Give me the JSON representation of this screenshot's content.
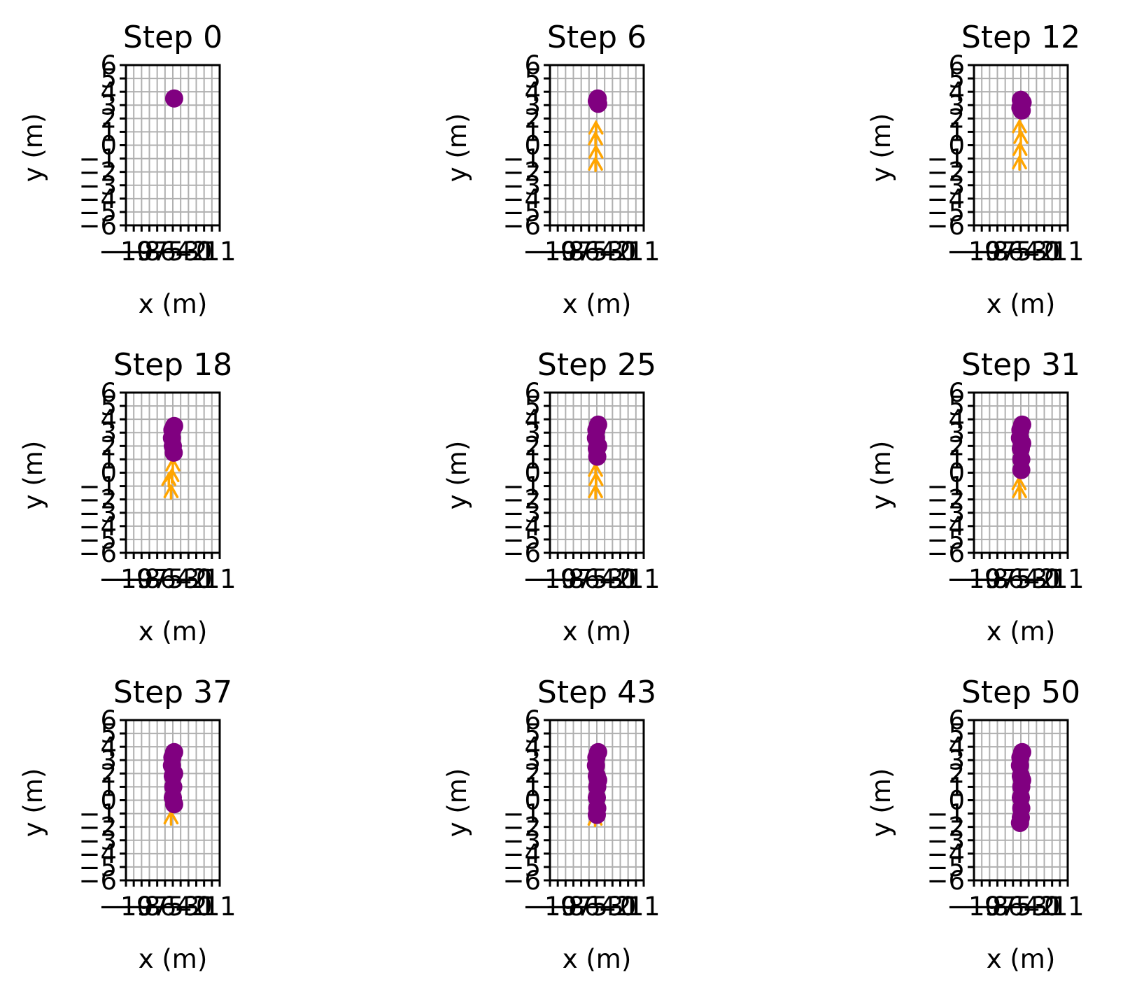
{
  "chart_data": [
    {
      "type": "scatter",
      "title": "Step 0",
      "xlabel": "x (m)",
      "ylabel": "y (m)",
      "xlim": [
        -10,
        11
      ],
      "ylim": [
        -6,
        6
      ],
      "grid": true,
      "xticks": [
        "−10",
        "−9",
        "−8",
        "−7",
        "−6",
        "−5",
        "−4",
        "−3",
        "−2",
        "−1",
        "0",
        "1",
        "11"
      ],
      "yticks": [
        "−6",
        "−5",
        "−4",
        "−3",
        "−2",
        "−1",
        "0",
        "1",
        "2",
        "3",
        "4",
        "5",
        "6"
      ],
      "agent_color": "#800080",
      "arrow_color": "#ffa500",
      "agent_path": [
        {
          "x": 0.8,
          "y": 3.5
        }
      ],
      "arrows": []
    },
    {
      "type": "scatter",
      "title": "Step 6",
      "xlabel": "x (m)",
      "ylabel": "y (m)",
      "xlim": [
        -10,
        11
      ],
      "ylim": [
        -6,
        6
      ],
      "grid": true,
      "xticks": [
        "−10",
        "−9",
        "−8",
        "−7",
        "−6",
        "−5",
        "−4",
        "−3",
        "−2",
        "−1",
        "0",
        "1",
        "11"
      ],
      "yticks": [
        "−6",
        "−5",
        "−4",
        "−3",
        "−2",
        "−1",
        "0",
        "1",
        "2",
        "3",
        "4",
        "5",
        "6"
      ],
      "agent_color": "#800080",
      "arrow_color": "#ffa500",
      "agent_path": [
        {
          "x": 0.5,
          "y": 3.3
        },
        {
          "x": 0.7,
          "y": 3.5
        },
        {
          "x": 0.8,
          "y": 3.1
        }
      ],
      "arrows": [
        {
          "x": 0.3,
          "y": 1.3
        },
        {
          "x": 0.2,
          "y": 0.5
        },
        {
          "x": 0.3,
          "y": -0.5
        },
        {
          "x": 0.2,
          "y": -1.4
        }
      ]
    },
    {
      "type": "scatter",
      "title": "Step 12",
      "xlabel": "x (m)",
      "ylabel": "y (m)",
      "xlim": [
        -10,
        11
      ],
      "ylim": [
        -6,
        6
      ],
      "grid": true,
      "xticks": [
        "−10",
        "−9",
        "−8",
        "−7",
        "−6",
        "−5",
        "−4",
        "−3",
        "−2",
        "−1",
        "0",
        "1",
        "11"
      ],
      "yticks": [
        "−6",
        "−5",
        "−4",
        "−3",
        "−2",
        "−1",
        "0",
        "1",
        "2",
        "3",
        "4",
        "5",
        "6"
      ],
      "agent_color": "#800080",
      "arrow_color": "#ffa500",
      "agent_path": [
        {
          "x": 0.5,
          "y": 3.4
        },
        {
          "x": 0.4,
          "y": 2.8
        },
        {
          "x": 0.7,
          "y": 2.6
        },
        {
          "x": 0.9,
          "y": 3.2
        }
      ],
      "arrows": [
        {
          "x": 0.2,
          "y": 1.4
        },
        {
          "x": 0.5,
          "y": 0.6
        },
        {
          "x": 0.3,
          "y": -0.3
        },
        {
          "x": 0.2,
          "y": -1.3
        }
      ]
    },
    {
      "type": "scatter",
      "title": "Step 18",
      "xlabel": "x (m)",
      "ylabel": "y (m)",
      "xlim": [
        -10,
        11
      ],
      "ylim": [
        -6,
        6
      ],
      "grid": true,
      "xticks": [
        "−10",
        "−9",
        "−8",
        "−7",
        "−6",
        "−5",
        "−4",
        "−3",
        "−2",
        "−1",
        "0",
        "1",
        "11"
      ],
      "yticks": [
        "−6",
        "−5",
        "−4",
        "−3",
        "−2",
        "−1",
        "0",
        "1",
        "2",
        "3",
        "4",
        "5",
        "6"
      ],
      "agent_color": "#800080",
      "arrow_color": "#ffa500",
      "agent_path": [
        {
          "x": 0.4,
          "y": 3.2
        },
        {
          "x": 0.3,
          "y": 2.6
        },
        {
          "x": 0.5,
          "y": 2.0
        },
        {
          "x": 0.7,
          "y": 1.5
        },
        {
          "x": 0.8,
          "y": 3.5
        }
      ],
      "arrows": [
        {
          "x": 0.5,
          "y": 0.6
        },
        {
          "x": -0.4,
          "y": -0.5
        },
        {
          "x": 0.3,
          "y": -0.2
        },
        {
          "x": 0.1,
          "y": -1.4
        }
      ]
    },
    {
      "type": "scatter",
      "title": "Step 25",
      "xlabel": "x (m)",
      "ylabel": "y (m)",
      "xlim": [
        -10,
        11
      ],
      "ylim": [
        -6,
        6
      ],
      "grid": true,
      "xticks": [
        "−10",
        "−9",
        "−8",
        "−7",
        "−6",
        "−5",
        "−4",
        "−3",
        "−2",
        "−1",
        "0",
        "1",
        "11"
      ],
      "yticks": [
        "−6",
        "−5",
        "−4",
        "−3",
        "−2",
        "−1",
        "0",
        "1",
        "2",
        "3",
        "4",
        "5",
        "6"
      ],
      "agent_color": "#800080",
      "arrow_color": "#ffa500",
      "agent_path": [
        {
          "x": 0.4,
          "y": 3.2
        },
        {
          "x": 0.3,
          "y": 2.6
        },
        {
          "x": 0.5,
          "y": 1.8
        },
        {
          "x": 0.6,
          "y": 1.2
        },
        {
          "x": 0.8,
          "y": 3.6
        },
        {
          "x": 0.8,
          "y": 2.0
        }
      ],
      "arrows": [
        {
          "x": 0.2,
          "y": 0.2
        },
        {
          "x": 0.3,
          "y": -0.5
        },
        {
          "x": 0.2,
          "y": -1.4
        }
      ]
    },
    {
      "type": "scatter",
      "title": "Step 31",
      "xlabel": "x (m)",
      "ylabel": "y (m)",
      "xlim": [
        -10,
        11
      ],
      "ylim": [
        -6,
        6
      ],
      "grid": true,
      "xticks": [
        "−10",
        "−9",
        "−8",
        "−7",
        "−6",
        "−5",
        "−4",
        "−3",
        "−2",
        "−1",
        "0",
        "1",
        "11"
      ],
      "yticks": [
        "−6",
        "−5",
        "−4",
        "−3",
        "−2",
        "−1",
        "0",
        "1",
        "2",
        "3",
        "4",
        "5",
        "6"
      ],
      "agent_color": "#800080",
      "arrow_color": "#ffa500",
      "agent_path": [
        {
          "x": 0.4,
          "y": 3.2
        },
        {
          "x": 0.3,
          "y": 2.6
        },
        {
          "x": 0.5,
          "y": 1.8
        },
        {
          "x": 0.6,
          "y": 1.0
        },
        {
          "x": 0.6,
          "y": 0.2
        },
        {
          "x": 0.8,
          "y": 3.6
        },
        {
          "x": 0.8,
          "y": 2.2
        }
      ],
      "arrows": [
        {
          "x": 0.1,
          "y": -0.8
        },
        {
          "x": 0.2,
          "y": -1.4
        }
      ]
    },
    {
      "type": "scatter",
      "title": "Step 37",
      "xlabel": "x (m)",
      "ylabel": "y (m)",
      "xlim": [
        -10,
        11
      ],
      "ylim": [
        -6,
        6
      ],
      "grid": true,
      "xticks": [
        "−10",
        "−9",
        "−8",
        "−7",
        "−6",
        "−5",
        "−4",
        "−3",
        "−2",
        "−1",
        "0",
        "1",
        "11"
      ],
      "yticks": [
        "−6",
        "−5",
        "−4",
        "−3",
        "−2",
        "−1",
        "0",
        "1",
        "2",
        "3",
        "4",
        "5",
        "6"
      ],
      "agent_color": "#800080",
      "arrow_color": "#ffa500",
      "agent_path": [
        {
          "x": 0.4,
          "y": 3.2
        },
        {
          "x": 0.3,
          "y": 2.6
        },
        {
          "x": 0.5,
          "y": 1.8
        },
        {
          "x": 0.6,
          "y": 1.0
        },
        {
          "x": 0.5,
          "y": 0.2
        },
        {
          "x": 0.8,
          "y": -0.3
        },
        {
          "x": 0.8,
          "y": 3.6
        },
        {
          "x": 0.8,
          "y": 2.0
        }
      ],
      "arrows": [
        {
          "x": 0.1,
          "y": -1.3
        }
      ]
    },
    {
      "type": "scatter",
      "title": "Step 43",
      "xlabel": "x (m)",
      "ylabel": "y (m)",
      "xlim": [
        -10,
        11
      ],
      "ylim": [
        -6,
        6
      ],
      "grid": true,
      "xticks": [
        "−10",
        "−9",
        "−8",
        "−7",
        "−6",
        "−5",
        "−4",
        "−3",
        "−2",
        "−1",
        "0",
        "1",
        "11"
      ],
      "yticks": [
        "−6",
        "−5",
        "−4",
        "−3",
        "−2",
        "−1",
        "0",
        "1",
        "2",
        "3",
        "4",
        "5",
        "6"
      ],
      "agent_color": "#800080",
      "arrow_color": "#ffa500",
      "agent_path": [
        {
          "x": 0.4,
          "y": 3.2
        },
        {
          "x": 0.3,
          "y": 2.6
        },
        {
          "x": 0.5,
          "y": 1.8
        },
        {
          "x": 0.6,
          "y": 1.0
        },
        {
          "x": 0.5,
          "y": 0.2
        },
        {
          "x": 0.6,
          "y": -0.6
        },
        {
          "x": 0.5,
          "y": -1.1
        },
        {
          "x": 0.8,
          "y": 3.6
        },
        {
          "x": 0.8,
          "y": 1.5
        }
      ],
      "arrows": [
        {
          "x": 0.1,
          "y": -1.4
        }
      ]
    },
    {
      "type": "scatter",
      "title": "Step 50",
      "xlabel": "x (m)",
      "ylabel": "y (m)",
      "xlim": [
        -10,
        11
      ],
      "ylim": [
        -6,
        6
      ],
      "grid": true,
      "xticks": [
        "−10",
        "−9",
        "−8",
        "−7",
        "−6",
        "−5",
        "−4",
        "−3",
        "−2",
        "−1",
        "0",
        "1",
        "11"
      ],
      "yticks": [
        "−6",
        "−5",
        "−4",
        "−3",
        "−2",
        "−1",
        "0",
        "1",
        "2",
        "3",
        "4",
        "5",
        "6"
      ],
      "agent_color": "#800080",
      "arrow_color": "#ffa500",
      "agent_path": [
        {
          "x": 0.4,
          "y": 3.2
        },
        {
          "x": 0.3,
          "y": 2.6
        },
        {
          "x": 0.5,
          "y": 1.8
        },
        {
          "x": 0.6,
          "y": 1.0
        },
        {
          "x": 0.5,
          "y": 0.2
        },
        {
          "x": 0.6,
          "y": -0.6
        },
        {
          "x": 0.5,
          "y": -1.3
        },
        {
          "x": 0.3,
          "y": -1.7
        },
        {
          "x": 0.8,
          "y": 3.6
        },
        {
          "x": 0.8,
          "y": 1.5
        }
      ],
      "arrows": []
    }
  ]
}
